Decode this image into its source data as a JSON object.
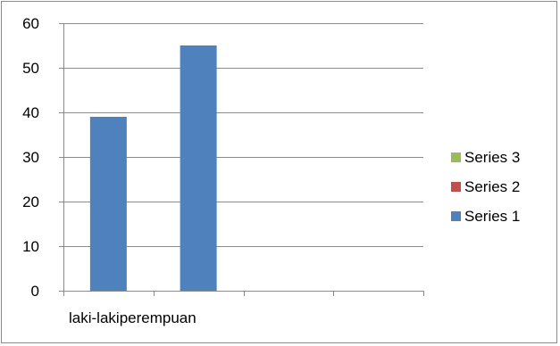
{
  "chart_data": {
    "type": "bar",
    "categories": [
      "laki-laki",
      "perempuan",
      "",
      ""
    ],
    "series": [
      {
        "name": "Series 1",
        "values": [
          39,
          55,
          null,
          null
        ],
        "color": "#4f81bd"
      },
      {
        "name": "Series 2",
        "values": [
          null,
          null,
          null,
          null
        ],
        "color": "#c0504d"
      },
      {
        "name": "Series 3",
        "values": [
          null,
          null,
          null,
          null
        ],
        "color": "#9bbb59"
      }
    ],
    "title": "",
    "xlabel": "",
    "ylabel": "",
    "ylim": [
      0,
      60
    ],
    "yticks": [
      0,
      10,
      20,
      30,
      40,
      50,
      60
    ],
    "grid": true,
    "legend": "right"
  }
}
